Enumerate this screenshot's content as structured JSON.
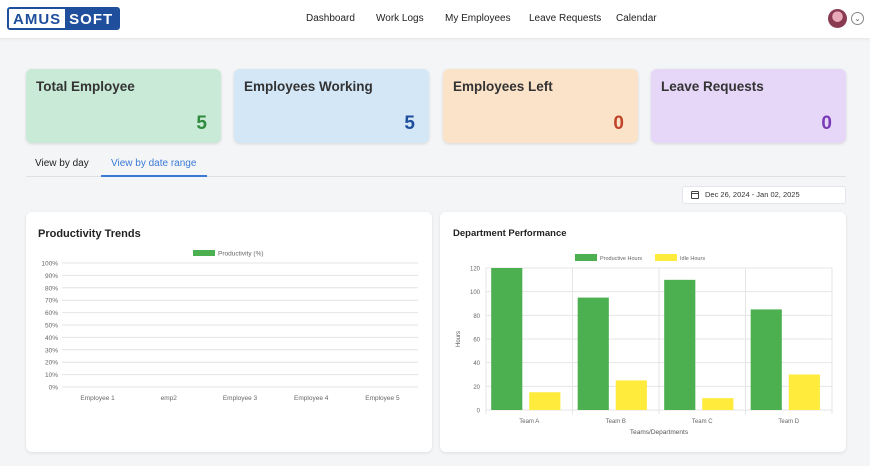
{
  "brand": {
    "part1": "AMUS",
    "part2": "SOFT"
  },
  "nav": {
    "dashboard": "Dashboard",
    "work_logs": "Work Logs",
    "my_employees": "My Employees",
    "leave_requests": "Leave Requests",
    "calendar": "Calendar"
  },
  "cards": {
    "total": {
      "title": "Total Employee",
      "value": "5",
      "bg": "#c8ead6",
      "color": "#2e8b3e"
    },
    "working": {
      "title": "Employees Working",
      "value": "5",
      "bg": "#d3e7f7",
      "color": "#1f4e9c"
    },
    "left": {
      "title": "Employees Left",
      "value": "0",
      "bg": "#fbe3c9",
      "color": "#c0442a"
    },
    "leave": {
      "title": "Leave Requests",
      "value": "0",
      "bg": "#e6d6f7",
      "color": "#7a3ab8"
    }
  },
  "tabs": {
    "by_day": "View by day",
    "by_range": "View by date range"
  },
  "date_range": "Dec 26, 2024 - Jan 02, 2025",
  "chart_data": [
    {
      "type": "bar",
      "title": "Productivity Trends",
      "categories": [
        "Employee 1",
        "emp2",
        "Employee 3",
        "Employee 4",
        "Employee 5"
      ],
      "series": [
        {
          "name": "Productivity (%)",
          "values": [
            0,
            0,
            0,
            0,
            0
          ],
          "color": "#4caf50"
        }
      ],
      "yticks": [
        "100%",
        "90%",
        "80%",
        "70%",
        "60%",
        "50%",
        "40%",
        "30%",
        "20%",
        "10%",
        "0%"
      ],
      "ylim": [
        0,
        100
      ],
      "legend": "top",
      "grid": true
    },
    {
      "type": "bar",
      "title": "Department Performance",
      "categories": [
        "Team A",
        "Team B",
        "Team C",
        "Team D"
      ],
      "series": [
        {
          "name": "Productive Hours",
          "values": [
            120,
            95,
            110,
            85
          ],
          "color": "#4caf50"
        },
        {
          "name": "Idle Hours",
          "values": [
            15,
            25,
            10,
            30
          ],
          "color": "#ffeb3b"
        }
      ],
      "yticks": [
        "120",
        "100",
        "80",
        "60",
        "40",
        "20",
        "0"
      ],
      "ylim": [
        0,
        120
      ],
      "xlabel": "Teams/Departments",
      "ylabel": "Hours",
      "legend": "top",
      "grid": true
    }
  ]
}
